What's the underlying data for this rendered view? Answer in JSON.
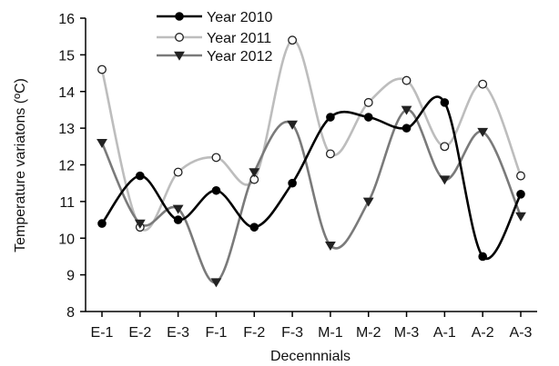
{
  "chart_data": {
    "type": "line",
    "categories": [
      "E-1",
      "E-2",
      "E-3",
      "F-1",
      "F-2",
      "F-3",
      "M-1",
      "M-2",
      "M-3",
      "A-1",
      "A-2",
      "A-3"
    ],
    "xlabel": "Decennnials",
    "ylabel": "Temperature variatons (ºC)",
    "ylim": [
      8,
      16
    ],
    "yticks": [
      "8",
      "9",
      "10",
      "11",
      "12",
      "13",
      "14",
      "15",
      "16"
    ],
    "grid": false,
    "legend_position": "top-left",
    "series": [
      {
        "name": "Year 2010",
        "color": "#000000",
        "marker": "filled-circle",
        "values": [
          10.4,
          11.7,
          10.5,
          11.3,
          10.3,
          11.5,
          13.3,
          13.3,
          13.0,
          13.7,
          9.5,
          11.2
        ]
      },
      {
        "name": "Year 2011",
        "color": "#bdbdbd",
        "marker": "open-circle",
        "values": [
          14.6,
          10.3,
          11.8,
          12.2,
          11.6,
          15.4,
          12.3,
          13.7,
          14.3,
          12.5,
          14.2,
          11.7
        ]
      },
      {
        "name": "Year 2012",
        "color": "#7a7a7a",
        "marker": "filled-triangle-down",
        "values": [
          12.6,
          10.4,
          10.8,
          8.8,
          11.8,
          13.1,
          9.8,
          11.0,
          13.5,
          11.6,
          12.9,
          10.6
        ]
      }
    ]
  }
}
